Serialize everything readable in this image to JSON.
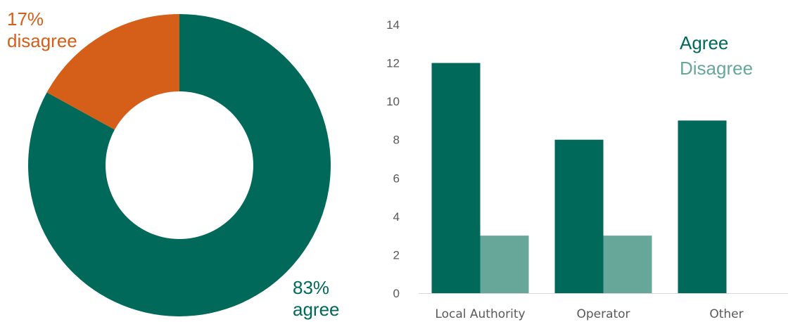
{
  "colors": {
    "agree": "#00695A",
    "disagree_donut": "#D55F18",
    "disagree_bar": "#67A79A",
    "axis": "#D9D9D9",
    "text": "#595959"
  },
  "chart_data": [
    {
      "type": "pie",
      "variant": "donut",
      "slices": [
        {
          "key": "agree",
          "value": 83,
          "pct_label": "83%",
          "word_label": "agree"
        },
        {
          "key": "disagree",
          "value": 17,
          "pct_label": "17%",
          "word_label": "disagree"
        }
      ]
    },
    {
      "type": "bar",
      "categories": [
        "Local Authority",
        "Operator",
        "Other"
      ],
      "series": [
        {
          "name": "Agree",
          "values": [
            12,
            8,
            9
          ]
        },
        {
          "name": "Disagree",
          "values": [
            3,
            3,
            0
          ]
        }
      ],
      "ylim": [
        0,
        14
      ],
      "yticks": [
        "0",
        "2",
        "4",
        "6",
        "8",
        "10",
        "12",
        "14"
      ],
      "grid": false,
      "legend": "top-right"
    }
  ]
}
